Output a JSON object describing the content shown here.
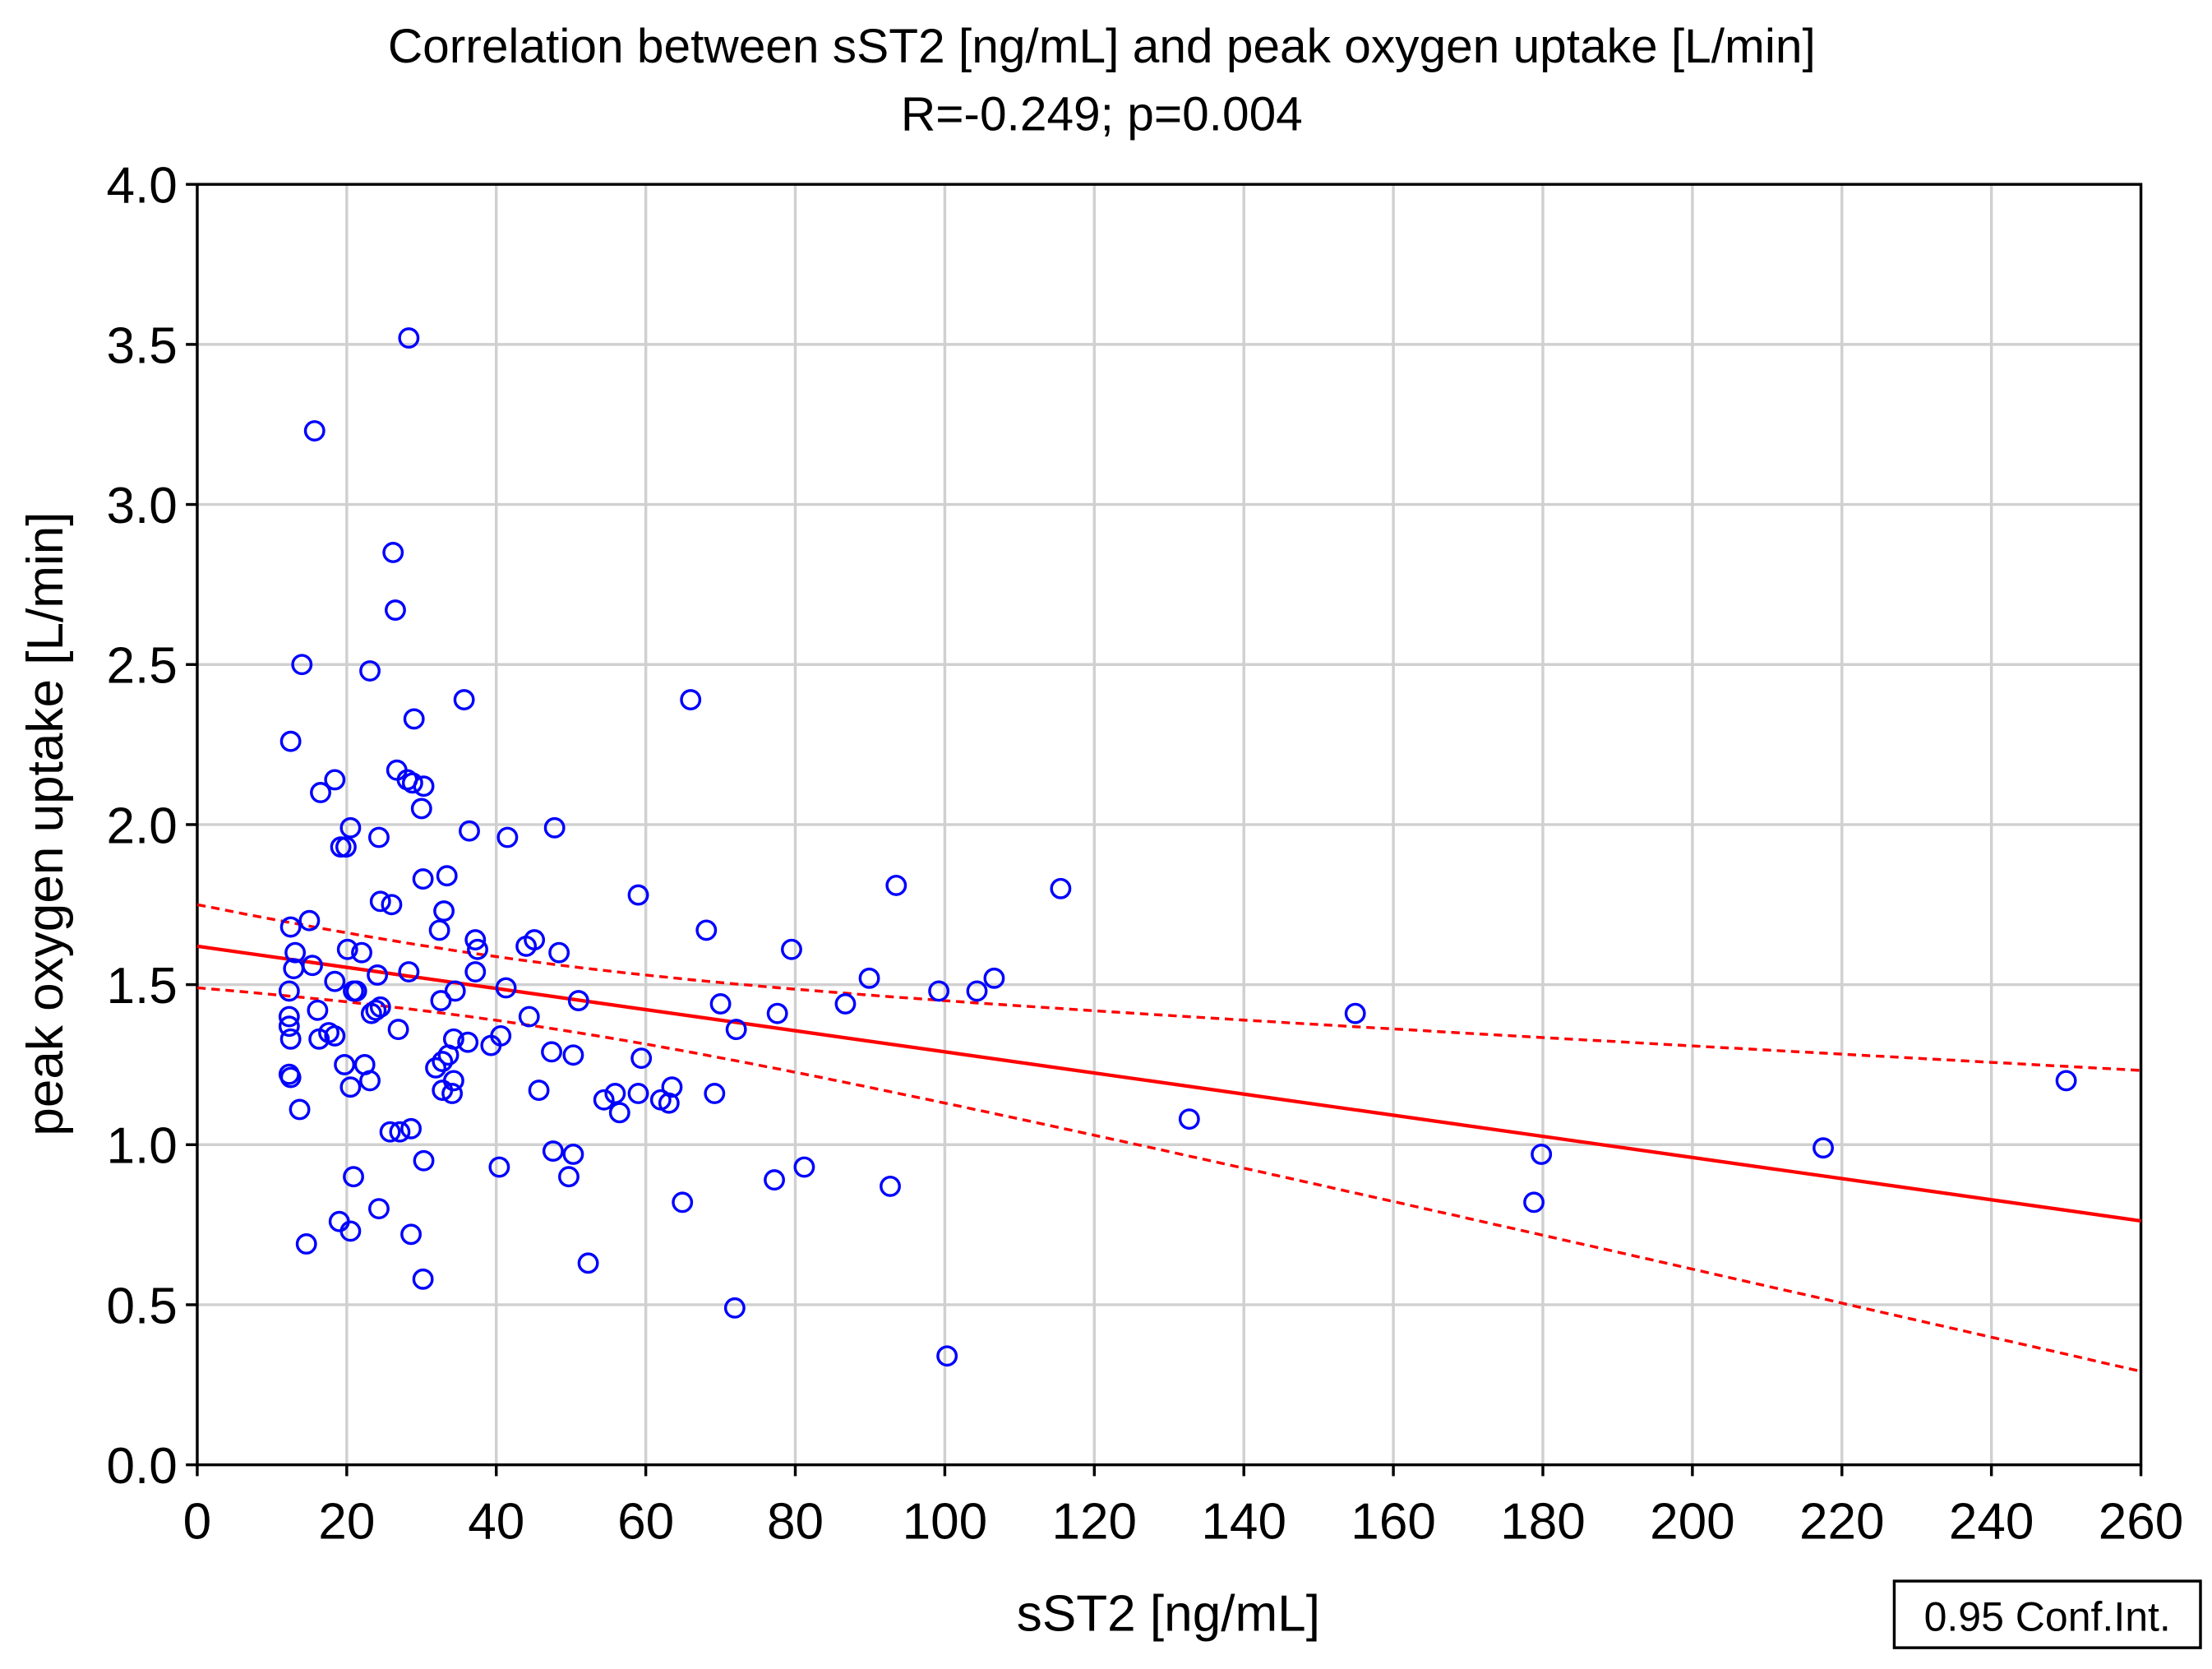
{
  "chart_data": {
    "type": "scatter",
    "title": "Correlation between sST2 [ng/mL] and peak oxygen uptake [L/min]",
    "subtitle": "R=-0.249; p=0.004",
    "xlabel": "sST2 [ng/mL]",
    "ylabel": "peak oxygen uptake [L/min]",
    "xlim": [
      0,
      260
    ],
    "ylim": [
      0,
      4.0
    ],
    "xticks": [
      "0",
      "20",
      "40",
      "60",
      "80",
      "100",
      "120",
      "140",
      "160",
      "180",
      "200",
      "220",
      "240",
      "260"
    ],
    "yticks": [
      "0.0",
      "0.5",
      "1.0",
      "1.5",
      "2.0",
      "2.5",
      "3.0",
      "3.5",
      "4.0"
    ],
    "grid": true,
    "legend": {
      "label": "0.95 Conf.Int.",
      "placement": "bottom-right"
    },
    "colors": {
      "points": "#0000ff",
      "fit": "#ff0000",
      "grid": "#d0d0d0"
    },
    "regression": {
      "intercept": 1.62,
      "slope": -0.0033,
      "ci_center_x": 40,
      "ci_a": 0.0099,
      "ci_b": 4.36e-06
    },
    "points": [
      [
        28.3,
        3.52
      ],
      [
        15.7,
        3.23
      ],
      [
        26.2,
        2.85
      ],
      [
        26.5,
        2.67
      ],
      [
        14.0,
        2.5
      ],
      [
        23.1,
        2.48
      ],
      [
        66.0,
        2.39
      ],
      [
        35.7,
        2.39
      ],
      [
        29.0,
        2.33
      ],
      [
        12.5,
        2.26
      ],
      [
        26.7,
        2.17
      ],
      [
        18.4,
        2.14
      ],
      [
        28.1,
        2.14
      ],
      [
        28.8,
        2.13
      ],
      [
        30.3,
        2.12
      ],
      [
        16.5,
        2.1
      ],
      [
        30.0,
        2.05
      ],
      [
        20.5,
        1.99
      ],
      [
        47.8,
        1.99
      ],
      [
        36.4,
        1.98
      ],
      [
        41.5,
        1.96
      ],
      [
        24.3,
        1.96
      ],
      [
        19.2,
        1.93
      ],
      [
        19.9,
        1.93
      ],
      [
        30.2,
        1.83
      ],
      [
        33.4,
        1.84
      ],
      [
        59.0,
        1.78
      ],
      [
        93.5,
        1.81
      ],
      [
        115.5,
        1.8
      ],
      [
        24.5,
        1.76
      ],
      [
        26.0,
        1.75
      ],
      [
        33.0,
        1.73
      ],
      [
        15.0,
        1.7
      ],
      [
        12.5,
        1.68
      ],
      [
        32.4,
        1.67
      ],
      [
        68.1,
        1.67
      ],
      [
        37.2,
        1.64
      ],
      [
        37.5,
        1.61
      ],
      [
        45.1,
        1.64
      ],
      [
        44.0,
        1.62
      ],
      [
        20.1,
        1.61
      ],
      [
        22.0,
        1.6
      ],
      [
        13.1,
        1.6
      ],
      [
        48.4,
        1.6
      ],
      [
        79.5,
        1.61
      ],
      [
        15.4,
        1.56
      ],
      [
        12.9,
        1.55
      ],
      [
        28.3,
        1.54
      ],
      [
        37.2,
        1.54
      ],
      [
        24.1,
        1.53
      ],
      [
        89.9,
        1.52
      ],
      [
        106.6,
        1.52
      ],
      [
        18.4,
        1.51
      ],
      [
        41.3,
        1.49
      ],
      [
        34.5,
        1.48
      ],
      [
        20.9,
        1.48
      ],
      [
        21.3,
        1.48
      ],
      [
        12.3,
        1.48
      ],
      [
        99.2,
        1.48
      ],
      [
        104.3,
        1.48
      ],
      [
        32.6,
        1.45
      ],
      [
        51.0,
        1.45
      ],
      [
        70.0,
        1.44
      ],
      [
        86.7,
        1.44
      ],
      [
        24.5,
        1.43
      ],
      [
        16.1,
        1.42
      ],
      [
        23.9,
        1.42
      ],
      [
        23.3,
        1.41
      ],
      [
        12.3,
        1.4
      ],
      [
        77.6,
        1.41
      ],
      [
        154.9,
        1.41
      ],
      [
        44.4,
        1.4
      ],
      [
        12.3,
        1.37
      ],
      [
        26.9,
        1.36
      ],
      [
        72.1,
        1.36
      ],
      [
        17.6,
        1.35
      ],
      [
        18.4,
        1.34
      ],
      [
        16.3,
        1.33
      ],
      [
        12.5,
        1.33
      ],
      [
        40.6,
        1.34
      ],
      [
        34.3,
        1.33
      ],
      [
        36.2,
        1.32
      ],
      [
        39.3,
        1.31
      ],
      [
        47.4,
        1.29
      ],
      [
        50.3,
        1.28
      ],
      [
        33.6,
        1.28
      ],
      [
        32.8,
        1.26
      ],
      [
        59.4,
        1.27
      ],
      [
        19.7,
        1.25
      ],
      [
        22.4,
        1.25
      ],
      [
        31.9,
        1.24
      ],
      [
        12.3,
        1.22
      ],
      [
        12.5,
        1.21
      ],
      [
        23.1,
        1.2
      ],
      [
        34.3,
        1.2
      ],
      [
        250.0,
        1.2
      ],
      [
        20.5,
        1.18
      ],
      [
        45.7,
        1.17
      ],
      [
        32.8,
        1.17
      ],
      [
        34.1,
        1.16
      ],
      [
        63.5,
        1.18
      ],
      [
        69.2,
        1.16
      ],
      [
        59.0,
        1.16
      ],
      [
        55.9,
        1.16
      ],
      [
        54.4,
        1.14
      ],
      [
        62.0,
        1.14
      ],
      [
        63.1,
        1.13
      ],
      [
        56.5,
        1.1
      ],
      [
        13.7,
        1.11
      ],
      [
        132.7,
        1.08
      ],
      [
        25.8,
        1.04
      ],
      [
        27.1,
        1.04
      ],
      [
        28.6,
        1.05
      ],
      [
        47.6,
        0.98
      ],
      [
        50.3,
        0.97
      ],
      [
        179.8,
        0.97
      ],
      [
        217.5,
        0.99
      ],
      [
        30.3,
        0.95
      ],
      [
        40.4,
        0.93
      ],
      [
        81.2,
        0.93
      ],
      [
        49.7,
        0.9
      ],
      [
        77.2,
        0.89
      ],
      [
        20.9,
        0.9
      ],
      [
        92.7,
        0.87
      ],
      [
        64.9,
        0.82
      ],
      [
        178.8,
        0.82
      ],
      [
        24.3,
        0.8
      ],
      [
        19.0,
        0.76
      ],
      [
        20.5,
        0.73
      ],
      [
        28.6,
        0.72
      ],
      [
        14.6,
        0.69
      ],
      [
        52.3,
        0.63
      ],
      [
        30.2,
        0.58
      ],
      [
        71.9,
        0.49
      ],
      [
        100.3,
        0.34
      ]
    ]
  }
}
